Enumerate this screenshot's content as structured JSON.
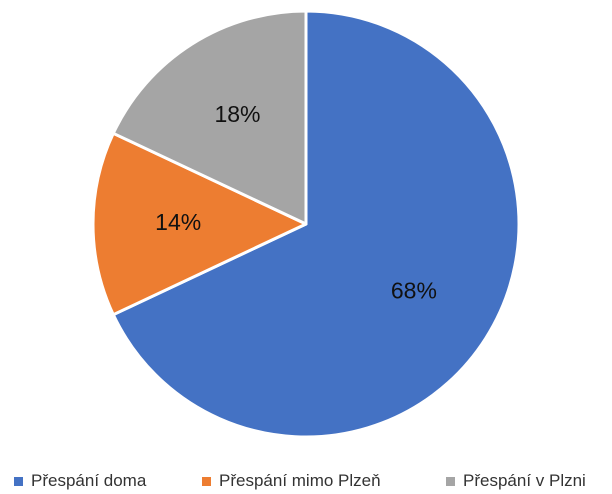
{
  "chart_data": {
    "type": "pie",
    "title": "",
    "start_angle": "12 o'clock, clockwise",
    "slices": [
      {
        "label": "Přespání doma",
        "value": 68,
        "display": "68%",
        "color": "#4472C4"
      },
      {
        "label": "Přespání mimo Plzeň",
        "value": 14,
        "display": "14%",
        "color": "#ED7D31"
      },
      {
        "label": "Přespání v Plzni",
        "value": 18,
        "display": "18%",
        "color": "#A5A5A5"
      }
    ],
    "legend_position": "bottom"
  }
}
